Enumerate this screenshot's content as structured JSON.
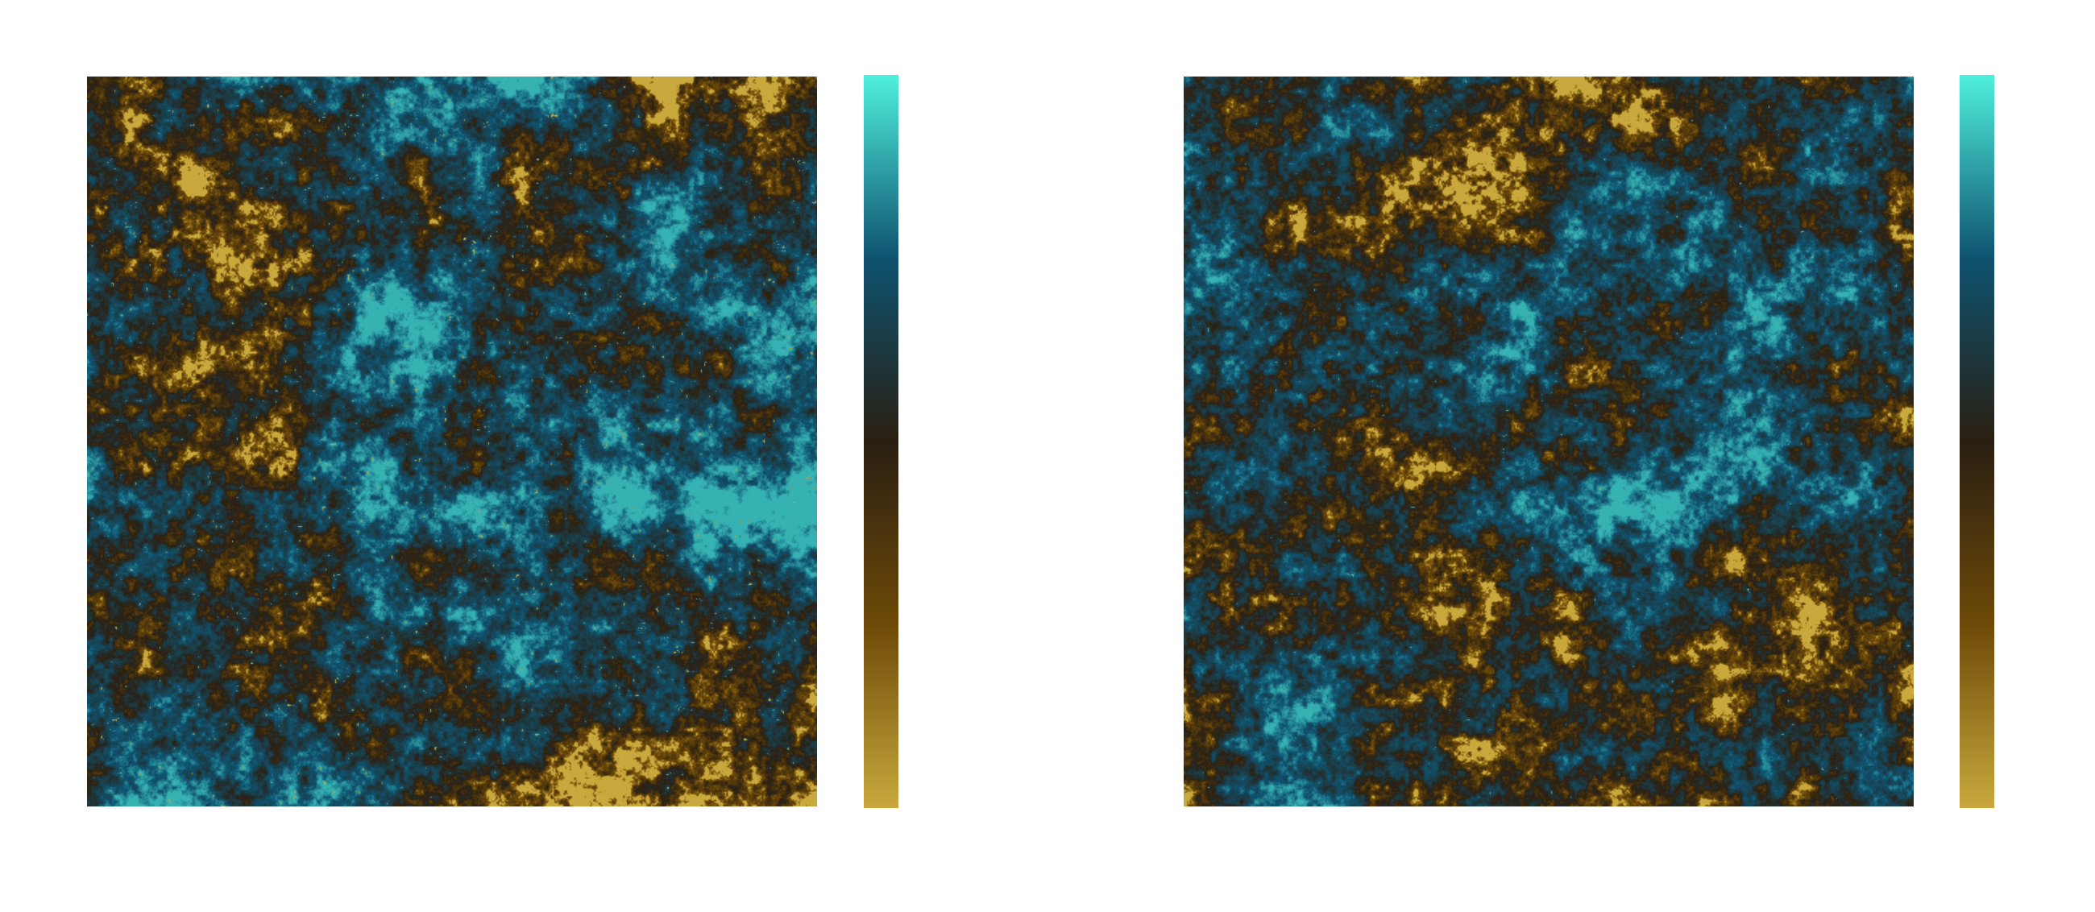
{
  "figure": {
    "panels": [
      {
        "id": "left",
        "description_free": true,
        "colormap": [
          "#c9a93d",
          "#6e4a08",
          "#2a1f12",
          "#0f5370",
          "#4ff0de"
        ],
        "hotspot_density": "high"
      },
      {
        "id": "right",
        "description_free": true,
        "colormap": [
          "#c9a93d",
          "#6e4a08",
          "#2a1f12",
          "#0f5370",
          "#4ff0de"
        ],
        "hotspot_density": "low"
      }
    ],
    "colors": {
      "background": "#ffffff",
      "field_base": "#8a6a1c",
      "field_dark": "#3a2c14",
      "filament": "#123b4e",
      "hotspot": "#5ef3e3"
    }
  }
}
